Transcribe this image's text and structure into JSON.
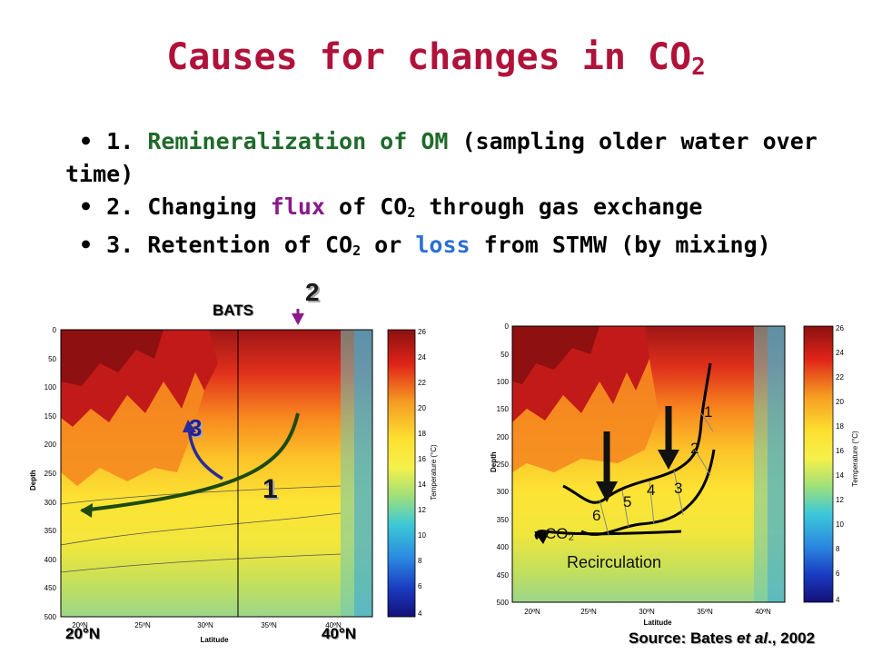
{
  "title": {
    "text": "Causes for changes in CO",
    "sub": "2"
  },
  "bullets": [
    {
      "prefix": "1. ",
      "highlight": "Remineralization of OM",
      "rest": " (sampling older water over time)"
    },
    {
      "prefix": "2. Changing ",
      "highlight": "flux",
      "rest_a": " of CO",
      "sub": "2",
      "rest_b": " through gas exchange"
    },
    {
      "prefix": "3. Retention of CO",
      "sub": "2",
      "mid": " or ",
      "highlight": "loss",
      "rest": " from STMW (by mixing)"
    }
  ],
  "colors": {
    "title": "#b0123a",
    "green": "#1f6a2a",
    "purple": "#8a1a8a",
    "blue": "#2b6fd6",
    "arrow_green": "#1e4a12",
    "arrow_blue": "#2a2a9a",
    "arrow_purple": "#8a1a8a"
  },
  "left_figure": {
    "station_label": "BATS",
    "ylabel": "Depth",
    "xlabel": "Latitude",
    "colorbar_label": "Temperature (°C)",
    "y_ticks": [
      "0",
      "50",
      "100",
      "150",
      "200",
      "250",
      "300",
      "350",
      "400",
      "450",
      "500"
    ],
    "x_ticks": [
      "20ºN",
      "25ºN",
      "30ºN",
      "35ºN",
      "40ºN"
    ],
    "colorbar_ticks": [
      "26",
      "24",
      "22",
      "20",
      "18",
      "16",
      "14",
      "12",
      "10",
      "8",
      "6",
      "4"
    ],
    "big_left": "20°N",
    "big_right": "40°N",
    "markers": {
      "one": "1",
      "two": "2",
      "three": "3"
    }
  },
  "right_figure": {
    "ylabel": "Depth",
    "xlabel": "Latitude",
    "colorbar_label": "Temperature (°C)",
    "y_ticks": [
      "0",
      "50",
      "100",
      "150",
      "200",
      "250",
      "300",
      "350",
      "400",
      "450",
      "500"
    ],
    "x_ticks": [
      "20ºN",
      "25ºN",
      "30ºN",
      "35ºN",
      "40ºN"
    ],
    "colorbar_ticks": [
      "26",
      "24",
      "22",
      "20",
      "18",
      "16",
      "14",
      "12",
      "10",
      "8",
      "6",
      "4"
    ],
    "step_labels": [
      "1",
      "2",
      "3",
      "4",
      "5",
      "6"
    ],
    "co2_label": "CO₂",
    "recirc_label": "Recirculation"
  },
  "source": {
    "prefix": "Source: Bates ",
    "italic": "et al",
    "suffix": "., 2002"
  }
}
